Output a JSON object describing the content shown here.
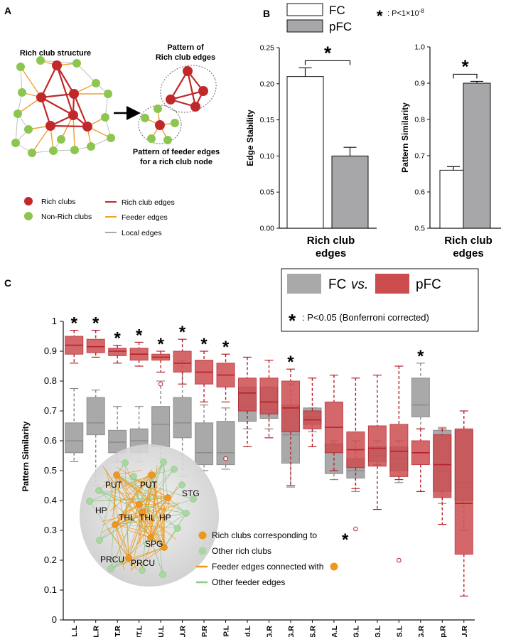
{
  "panels": {
    "a": {
      "letter": "A",
      "rich_club_title": "Rich club structure",
      "pattern_rich_title_1": "Pattern of",
      "pattern_rich_title_2": "Rich club edges",
      "pattern_feeder_title_1": "Pattern of feeder edges",
      "pattern_feeder_title_2": "for a rich club node",
      "legend": {
        "rich_clubs": "Rich clubs",
        "non_rich_clubs": "Non-Rich clubs",
        "rich_club_edges": "Rich club edges",
        "feeder_edges": "Feeder edges",
        "local_edges": "Local edges"
      },
      "colors": {
        "rich": "#c0282a",
        "nonrich": "#8dc64f",
        "feeder": "#f0a030",
        "local": "#a8a8a8"
      }
    },
    "b": {
      "letter": "B",
      "legend_fc": "FC",
      "legend_pfc": "pFC",
      "pvalue_star": "*",
      "pvalue_text": ": P<1×10",
      "pvalue_exp": "-8",
      "colors": {
        "fc": "#ffffff",
        "pfc": "#a7a7a9"
      }
    },
    "c": {
      "letter": "C",
      "legend_fc": "FC",
      "legend_vs": "vs.",
      "legend_pfc": "pFC",
      "legend_star": "*",
      "legend_p": ": P<0.05 (Bonferroni corrected)",
      "colors": {
        "fc": "#a9a9a9",
        "pfc": "#cd4d4f",
        "pfc_edge": "#b8202a",
        "fc_edge": "#8e8e8e"
      },
      "brain": {
        "labels": [
          "PUT",
          "PUT",
          "STG",
          "HP",
          "THL",
          "THL",
          "HP",
          "SPG",
          "PRCU",
          "PRCU"
        ],
        "legend_rich_corr": "Rich clubs corresponding to",
        "legend_rich_corr_star": "*",
        "legend_other_rich": "Other rich clubs",
        "legend_feeder_conn": "Feeder edges connected with",
        "legend_other_feeder": "Other feeder edges"
      }
    }
  },
  "chart_data": [
    {
      "type": "bar",
      "categories": [
        "Rich club edges"
      ],
      "series": [
        {
          "name": "FC",
          "values": [
            0.21
          ],
          "error": [
            0.012
          ]
        },
        {
          "name": "pFC",
          "values": [
            0.1
          ],
          "error": [
            0.012
          ]
        }
      ],
      "xlabel_1": "Rich club",
      "xlabel_2": "edges",
      "ylabel": "Edge Stability",
      "ylim": [
        0,
        0.25
      ],
      "yticks": [
        "0.00",
        "0.05",
        "0.10",
        "0.15",
        "0.20",
        "0.25"
      ],
      "significance": "*"
    },
    {
      "type": "bar",
      "categories": [
        "Rich club edges"
      ],
      "series": [
        {
          "name": "FC",
          "values": [
            0.66
          ],
          "error": [
            0.01
          ]
        },
        {
          "name": "pFC",
          "values": [
            0.9
          ],
          "error": [
            0.005
          ]
        }
      ],
      "xlabel_1": "Rich club",
      "xlabel_2": "edges",
      "ylabel": "Pattern Similarity",
      "ylim": [
        0.5,
        1.0
      ],
      "yticks": [
        "0.5",
        "0.6",
        "0.7",
        "0.8",
        "0.9",
        "1.0"
      ],
      "significance": "*"
    },
    {
      "type": "box",
      "ylabel": "Pattern Similarity",
      "ylim": [
        0,
        1.0
      ],
      "yticks": [
        "0",
        "0.1",
        "0.2",
        "0.3",
        "0.4",
        "0.5",
        "0.6",
        "0.7",
        "0.8",
        "0.9",
        "1"
      ],
      "categories": [
        "THL.L",
        "THL.R",
        "PUT.R",
        "PUT.L",
        "PRCU.L",
        "PRCU.R",
        "HP.R",
        "HP.L",
        "SFGmed.L",
        "PrCG.R",
        "STG.R",
        "INS.R",
        "SMA.L",
        "MTG.L",
        "STG.L",
        "INS.L",
        "SPG.R",
        "TPsup.R",
        "CAU.R"
      ],
      "significant": [
        true,
        true,
        true,
        true,
        true,
        true,
        true,
        true,
        false,
        false,
        true,
        false,
        false,
        false,
        false,
        false,
        true,
        false,
        false
      ],
      "fc": [
        {
          "min": 0.53,
          "q1": 0.56,
          "med": 0.6,
          "q3": 0.66,
          "max": 0.775,
          "out": []
        },
        {
          "min": 0.45,
          "q1": 0.62,
          "med": 0.66,
          "q3": 0.745,
          "max": 0.77,
          "out": []
        },
        {
          "min": 0.53,
          "q1": 0.56,
          "med": 0.595,
          "q3": 0.635,
          "max": 0.715,
          "out": []
        },
        {
          "min": 0.53,
          "q1": 0.56,
          "med": 0.6,
          "q3": 0.64,
          "max": 0.715,
          "out": []
        },
        {
          "min": 0.54,
          "q1": 0.58,
          "med": 0.655,
          "q3": 0.715,
          "max": 0.8,
          "out": []
        },
        {
          "min": 0.48,
          "q1": 0.61,
          "med": 0.66,
          "q3": 0.745,
          "max": 0.87,
          "out": []
        },
        {
          "min": 0.5,
          "q1": 0.52,
          "med": 0.56,
          "q3": 0.66,
          "max": 0.72,
          "out": []
        },
        {
          "min": 0.505,
          "q1": 0.52,
          "med": 0.56,
          "q3": 0.665,
          "max": 0.71,
          "out": []
        },
        {
          "min": 0.64,
          "q1": 0.665,
          "med": 0.715,
          "q3": 0.78,
          "max": 0.78,
          "out": []
        },
        {
          "min": 0.64,
          "q1": 0.675,
          "med": 0.705,
          "q3": 0.78,
          "max": 0.78,
          "out": []
        },
        {
          "min": 0.445,
          "q1": 0.525,
          "med": 0.62,
          "q3": 0.72,
          "max": 0.79,
          "out": []
        },
        {
          "min": 0.63,
          "q1": 0.655,
          "med": 0.68,
          "q3": 0.71,
          "max": 0.71,
          "out": []
        },
        {
          "min": 0.47,
          "q1": 0.49,
          "med": 0.585,
          "q3": 0.59,
          "max": 0.6,
          "out": []
        },
        {
          "min": 0.43,
          "q1": 0.475,
          "med": 0.5,
          "q3": 0.54,
          "max": 0.6,
          "out": []
        },
        {
          "min": 0.52,
          "q1": 0.53,
          "med": 0.55,
          "q3": 0.58,
          "max": 0.6,
          "out": []
        },
        {
          "min": 0.46,
          "q1": 0.5,
          "med": 0.54,
          "q3": 0.58,
          "max": 0.6,
          "out": []
        },
        {
          "min": 0.64,
          "q1": 0.68,
          "med": 0.72,
          "q3": 0.81,
          "max": 0.86,
          "out": []
        },
        {
          "min": 0.39,
          "q1": 0.43,
          "med": 0.5,
          "q3": 0.635,
          "max": 0.645,
          "out": []
        },
        {
          "min": 0.3,
          "q1": 0.4,
          "med": 0.46,
          "q3": 0.635,
          "max": 0.635,
          "out": []
        }
      ],
      "pfc": [
        {
          "min": 0.86,
          "q1": 0.89,
          "med": 0.92,
          "q3": 0.95,
          "max": 0.97,
          "out": []
        },
        {
          "min": 0.88,
          "q1": 0.895,
          "med": 0.915,
          "q3": 0.94,
          "max": 0.97,
          "out": []
        },
        {
          "min": 0.86,
          "q1": 0.885,
          "med": 0.9,
          "q3": 0.91,
          "max": 0.92,
          "out": []
        },
        {
          "min": 0.85,
          "q1": 0.87,
          "med": 0.89,
          "q3": 0.91,
          "max": 0.93,
          "out": []
        },
        {
          "min": 0.83,
          "q1": 0.87,
          "med": 0.88,
          "q3": 0.89,
          "max": 0.9,
          "out": [
            0.79
          ]
        },
        {
          "min": 0.79,
          "q1": 0.83,
          "med": 0.86,
          "q3": 0.9,
          "max": 0.94,
          "out": []
        },
        {
          "min": 0.73,
          "q1": 0.79,
          "med": 0.83,
          "q3": 0.87,
          "max": 0.9,
          "out": []
        },
        {
          "min": 0.73,
          "q1": 0.78,
          "med": 0.82,
          "q3": 0.86,
          "max": 0.89,
          "out": [
            0.54
          ]
        },
        {
          "min": 0.58,
          "q1": 0.7,
          "med": 0.76,
          "q3": 0.81,
          "max": 0.88,
          "out": []
        },
        {
          "min": 0.61,
          "q1": 0.69,
          "med": 0.73,
          "q3": 0.81,
          "max": 0.87,
          "out": []
        },
        {
          "min": 0.45,
          "q1": 0.63,
          "med": 0.71,
          "q3": 0.8,
          "max": 0.84,
          "out": []
        },
        {
          "min": 0.58,
          "q1": 0.64,
          "med": 0.67,
          "q3": 0.7,
          "max": 0.81,
          "out": []
        },
        {
          "min": 0.5,
          "q1": 0.56,
          "med": 0.645,
          "q3": 0.73,
          "max": 0.82,
          "out": []
        },
        {
          "min": 0.44,
          "q1": 0.51,
          "med": 0.57,
          "q3": 0.63,
          "max": 0.81,
          "out": [
            0.305
          ]
        },
        {
          "min": 0.37,
          "q1": 0.515,
          "med": 0.575,
          "q3": 0.65,
          "max": 0.82,
          "out": []
        },
        {
          "min": 0.47,
          "q1": 0.48,
          "med": 0.565,
          "q3": 0.655,
          "max": 0.85,
          "out": [
            0.2
          ]
        },
        {
          "min": 0.43,
          "q1": 0.52,
          "med": 0.56,
          "q3": 0.6,
          "max": 0.64,
          "out": []
        },
        {
          "min": 0.32,
          "q1": 0.41,
          "med": 0.52,
          "q3": 0.62,
          "max": 0.64,
          "out": []
        },
        {
          "min": 0.08,
          "q1": 0.22,
          "med": 0.39,
          "q3": 0.64,
          "max": 0.7,
          "out": []
        }
      ]
    }
  ]
}
